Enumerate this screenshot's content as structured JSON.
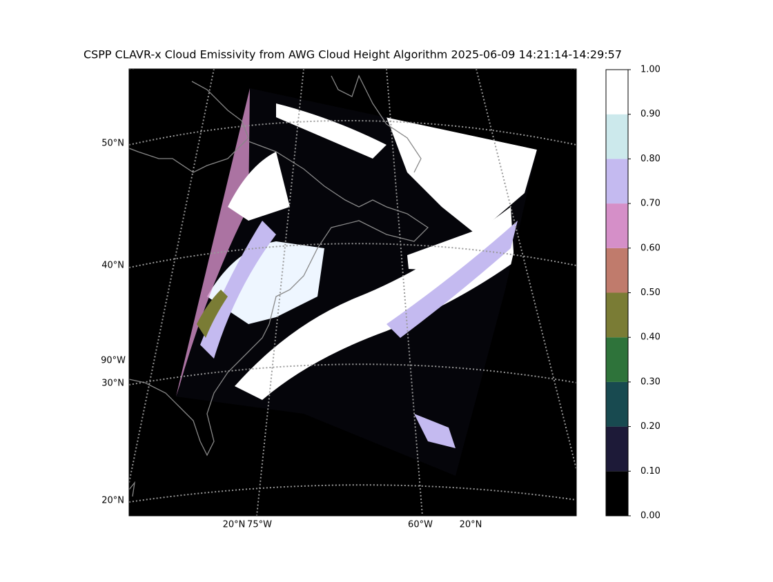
{
  "title": "CSPP CLAVR-x Cloud Emissivity from AWG Cloud Height Algorithm 2025-06-09 14:21:14-14:29:57",
  "map": {
    "left_labels": [
      "50°N",
      "40°N",
      "90°W",
      "30°N",
      "20°N"
    ],
    "bottom_labels": [
      "20°N",
      "75°W",
      "60°W",
      "20°N"
    ]
  },
  "colorbar": {
    "clim": [
      0,
      1
    ],
    "colors": [
      "#000000",
      "#1d1a38",
      "#184a50",
      "#2e733a",
      "#7a7c35",
      "#c07b6c",
      "#d58fc8",
      "#c4baf0",
      "#cce9ec",
      "#ffffff"
    ],
    "ticks": [
      {
        "value": 0,
        "label": "0.00"
      },
      {
        "value": 0.1,
        "label": "0.10"
      },
      {
        "value": 0.2,
        "label": "0.20"
      },
      {
        "value": 0.3,
        "label": "0.30"
      },
      {
        "value": 0.4,
        "label": "0.40"
      },
      {
        "value": 0.5,
        "label": "0.50"
      },
      {
        "value": 0.6,
        "label": "0.60"
      },
      {
        "value": 0.7,
        "label": "0.70"
      },
      {
        "value": 0.8,
        "label": "0.80"
      },
      {
        "value": 0.9,
        "label": "0.90"
      },
      {
        "value": 1,
        "label": "1.00"
      }
    ]
  }
}
